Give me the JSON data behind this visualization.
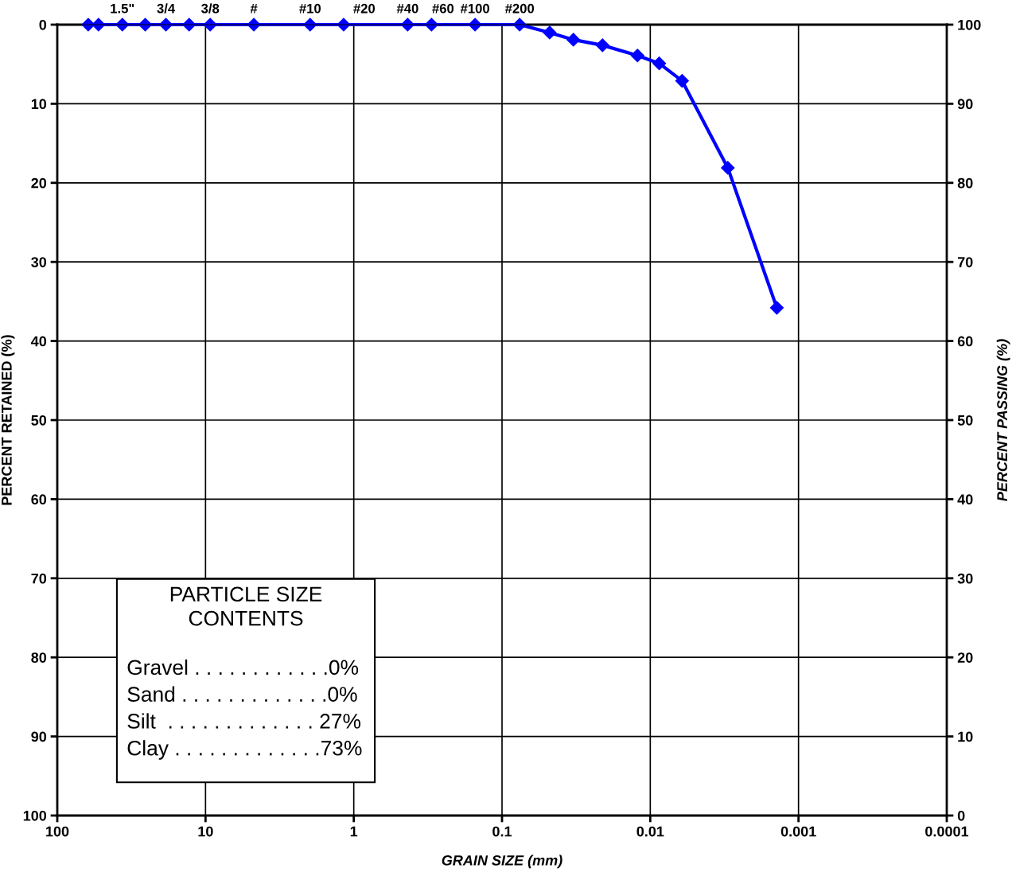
{
  "chart_data": {
    "type": "line",
    "xlabel": "GRAIN SIZE (mm)",
    "ylabel": "PERCENT RETAINED (%)",
    "y2label": "PERCENT PASSING (%)",
    "x": [
      61.8,
      52.7,
      36.4,
      25.5,
      18.5,
      12.9,
      9.3,
      4.72,
      1.97,
      1.17,
      0.433,
      0.299,
      0.152,
      0.076,
      0.0477,
      0.033,
      0.021,
      0.0122,
      0.0087,
      0.0061,
      0.003,
      0.0014
    ],
    "series": [
      {
        "color": "#0000ff",
        "values": [
          0,
          0,
          0,
          0,
          0,
          0,
          0,
          0,
          0,
          0,
          0,
          0,
          0,
          0,
          1.0,
          1.9,
          2.6,
          3.9,
          4.9,
          7.1,
          18.1,
          35.8
        ]
      }
    ],
    "log": "x",
    "xlim": [
      100,
      0.0001
    ],
    "xticks": [
      100,
      10,
      1,
      0.1,
      0.01,
      0.001,
      0.0001
    ],
    "ylim": [
      100,
      0
    ],
    "yticks": [
      0,
      10,
      20,
      30,
      40,
      50,
      60,
      70,
      80,
      90,
      100
    ],
    "y2lim": [
      0,
      100
    ],
    "y2ticks": [
      0,
      10,
      20,
      30,
      40,
      50,
      60,
      70,
      80,
      90,
      100
    ],
    "grid": true,
    "marker": "diamond",
    "line_style": "solid",
    "annotations": [
      "PARTICLE SIZE\nCONTENTS",
      "Gravel . . . . . . . . . . . .0%",
      "Sand . . . . . . . . . . . . .0%",
      "Silt  . . . . . . . . . . . . . 27%",
      "Clay . . . . . . . . . . . . .73%",
      {
        "text": "1.5\"",
        "x": 36.4,
        "y": 0
      },
      {
        "text": "3/4",
        "x": 18.5,
        "y": 0
      },
      {
        "text": "3/8",
        "x": 9.3,
        "y": 0
      },
      {
        "text": "#",
        "x": 4.72,
        "y": 0
      },
      {
        "text": "#10",
        "x": 1.97,
        "y": 0
      },
      {
        "text": "#20",
        "x": 0.85,
        "y": 0
      },
      {
        "text": "#40",
        "x": 0.433,
        "y": 0
      },
      {
        "text": "#60",
        "x": 0.25,
        "y": 0
      },
      {
        "text": "#100",
        "x": 0.152,
        "y": 0
      },
      {
        "text": "#200",
        "x": 0.076,
        "y": 0
      }
    ]
  }
}
